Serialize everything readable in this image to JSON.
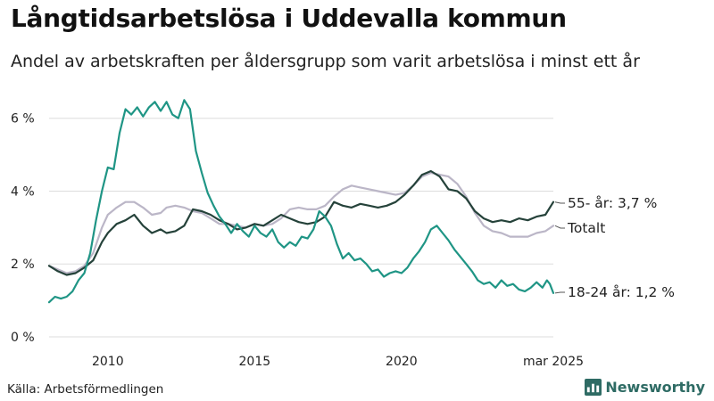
{
  "title": "Långtidsarbetslösa i Uddevalla kommun",
  "subtitle": "Andel av arbetskraften per åldersgrupp som varit arbetslösa i minst ett år",
  "source": "Källa: Arbetsförmedlingen",
  "brand": "Newsworthy",
  "colors": {
    "youth": "#1f9585",
    "older": "#25423a",
    "total": "#bbb6c7",
    "grid": "#dddddd",
    "text": "#222222"
  },
  "chart_data": {
    "type": "line",
    "x_unit": "year",
    "xlim": [
      2008.0,
      2025.17
    ],
    "ylim": [
      0,
      6.8
    ],
    "y_ticks": [
      {
        "value": 0,
        "label": "0 %"
      },
      {
        "value": 2,
        "label": "2 %"
      },
      {
        "value": 4,
        "label": "4 %"
      },
      {
        "value": 6,
        "label": "6 %"
      }
    ],
    "x_ticks": [
      {
        "value": 2010,
        "label": "2010"
      },
      {
        "value": 2015,
        "label": "2015"
      },
      {
        "value": 2020,
        "label": "2020"
      },
      {
        "value": 2025.17,
        "label": "mar 2025"
      }
    ],
    "grid": "horizontal",
    "series": [
      {
        "name": "Totalt",
        "color_key": "total",
        "end_label": "Totalt",
        "points": [
          [
            2008.0,
            1.95
          ],
          [
            2008.3,
            1.85
          ],
          [
            2008.6,
            1.75
          ],
          [
            2008.9,
            1.8
          ],
          [
            2009.2,
            1.95
          ],
          [
            2009.5,
            2.3
          ],
          [
            2009.8,
            3.0
          ],
          [
            2010.0,
            3.35
          ],
          [
            2010.3,
            3.55
          ],
          [
            2010.6,
            3.7
          ],
          [
            2010.9,
            3.7
          ],
          [
            2011.2,
            3.55
          ],
          [
            2011.5,
            3.35
          ],
          [
            2011.8,
            3.4
          ],
          [
            2012.0,
            3.55
          ],
          [
            2012.3,
            3.6
          ],
          [
            2012.6,
            3.55
          ],
          [
            2012.9,
            3.45
          ],
          [
            2013.2,
            3.4
          ],
          [
            2013.5,
            3.25
          ],
          [
            2013.8,
            3.1
          ],
          [
            2014.1,
            3.1
          ],
          [
            2014.4,
            3.05
          ],
          [
            2014.7,
            3.0
          ],
          [
            2015.0,
            3.1
          ],
          [
            2015.3,
            3.05
          ],
          [
            2015.6,
            3.1
          ],
          [
            2015.9,
            3.25
          ],
          [
            2016.2,
            3.5
          ],
          [
            2016.5,
            3.55
          ],
          [
            2016.8,
            3.5
          ],
          [
            2017.1,
            3.5
          ],
          [
            2017.4,
            3.6
          ],
          [
            2017.7,
            3.85
          ],
          [
            2018.0,
            4.05
          ],
          [
            2018.3,
            4.15
          ],
          [
            2018.6,
            4.1
          ],
          [
            2018.9,
            4.05
          ],
          [
            2019.2,
            4.0
          ],
          [
            2019.5,
            3.95
          ],
          [
            2019.8,
            3.9
          ],
          [
            2020.1,
            3.95
          ],
          [
            2020.4,
            4.15
          ],
          [
            2020.7,
            4.4
          ],
          [
            2021.0,
            4.5
          ],
          [
            2021.3,
            4.45
          ],
          [
            2021.6,
            4.4
          ],
          [
            2021.9,
            4.2
          ],
          [
            2022.2,
            3.85
          ],
          [
            2022.5,
            3.4
          ],
          [
            2022.8,
            3.05
          ],
          [
            2023.1,
            2.9
          ],
          [
            2023.4,
            2.85
          ],
          [
            2023.7,
            2.75
          ],
          [
            2024.0,
            2.75
          ],
          [
            2024.3,
            2.75
          ],
          [
            2024.6,
            2.85
          ],
          [
            2024.9,
            2.9
          ],
          [
            2025.17,
            3.05
          ]
        ]
      },
      {
        "name": "55- år",
        "color_key": "older",
        "end_label": "55- år: 3,7 %",
        "points": [
          [
            2008.0,
            1.95
          ],
          [
            2008.3,
            1.8
          ],
          [
            2008.6,
            1.7
          ],
          [
            2008.9,
            1.75
          ],
          [
            2009.2,
            1.9
          ],
          [
            2009.5,
            2.1
          ],
          [
            2009.8,
            2.6
          ],
          [
            2010.0,
            2.85
          ],
          [
            2010.3,
            3.1
          ],
          [
            2010.6,
            3.2
          ],
          [
            2010.9,
            3.35
          ],
          [
            2011.2,
            3.05
          ],
          [
            2011.5,
            2.85
          ],
          [
            2011.8,
            2.95
          ],
          [
            2012.0,
            2.85
          ],
          [
            2012.3,
            2.9
          ],
          [
            2012.6,
            3.05
          ],
          [
            2012.9,
            3.5
          ],
          [
            2013.2,
            3.45
          ],
          [
            2013.5,
            3.35
          ],
          [
            2013.8,
            3.2
          ],
          [
            2014.1,
            3.1
          ],
          [
            2014.4,
            2.95
          ],
          [
            2014.7,
            3.0
          ],
          [
            2015.0,
            3.1
          ],
          [
            2015.3,
            3.05
          ],
          [
            2015.6,
            3.2
          ],
          [
            2015.9,
            3.35
          ],
          [
            2016.2,
            3.25
          ],
          [
            2016.5,
            3.15
          ],
          [
            2016.8,
            3.1
          ],
          [
            2017.1,
            3.15
          ],
          [
            2017.4,
            3.3
          ],
          [
            2017.7,
            3.7
          ],
          [
            2018.0,
            3.6
          ],
          [
            2018.3,
            3.55
          ],
          [
            2018.6,
            3.65
          ],
          [
            2018.9,
            3.6
          ],
          [
            2019.2,
            3.55
          ],
          [
            2019.5,
            3.6
          ],
          [
            2019.8,
            3.7
          ],
          [
            2020.1,
            3.9
          ],
          [
            2020.4,
            4.15
          ],
          [
            2020.7,
            4.45
          ],
          [
            2021.0,
            4.55
          ],
          [
            2021.3,
            4.4
          ],
          [
            2021.6,
            4.05
          ],
          [
            2021.9,
            4.0
          ],
          [
            2022.2,
            3.8
          ],
          [
            2022.5,
            3.45
          ],
          [
            2022.8,
            3.25
          ],
          [
            2023.1,
            3.15
          ],
          [
            2023.4,
            3.2
          ],
          [
            2023.7,
            3.15
          ],
          [
            2024.0,
            3.25
          ],
          [
            2024.3,
            3.2
          ],
          [
            2024.6,
            3.3
          ],
          [
            2024.9,
            3.35
          ],
          [
            2025.17,
            3.7
          ]
        ]
      },
      {
        "name": "18-24 år",
        "color_key": "youth",
        "end_label": "18-24 år: 1,2 %",
        "points": [
          [
            2008.0,
            0.95
          ],
          [
            2008.2,
            1.1
          ],
          [
            2008.4,
            1.05
          ],
          [
            2008.6,
            1.1
          ],
          [
            2008.8,
            1.25
          ],
          [
            2009.0,
            1.55
          ],
          [
            2009.2,
            1.75
          ],
          [
            2009.4,
            2.3
          ],
          [
            2009.6,
            3.2
          ],
          [
            2009.8,
            4.0
          ],
          [
            2010.0,
            4.65
          ],
          [
            2010.2,
            4.6
          ],
          [
            2010.4,
            5.6
          ],
          [
            2010.6,
            6.25
          ],
          [
            2010.8,
            6.1
          ],
          [
            2011.0,
            6.3
          ],
          [
            2011.2,
            6.05
          ],
          [
            2011.4,
            6.3
          ],
          [
            2011.6,
            6.45
          ],
          [
            2011.8,
            6.2
          ],
          [
            2012.0,
            6.45
          ],
          [
            2012.2,
            6.1
          ],
          [
            2012.4,
            6.0
          ],
          [
            2012.6,
            6.5
          ],
          [
            2012.8,
            6.25
          ],
          [
            2013.0,
            5.1
          ],
          [
            2013.2,
            4.5
          ],
          [
            2013.4,
            3.95
          ],
          [
            2013.6,
            3.6
          ],
          [
            2013.8,
            3.3
          ],
          [
            2014.0,
            3.1
          ],
          [
            2014.2,
            2.85
          ],
          [
            2014.4,
            3.1
          ],
          [
            2014.6,
            2.9
          ],
          [
            2014.8,
            2.75
          ],
          [
            2015.0,
            3.05
          ],
          [
            2015.2,
            2.85
          ],
          [
            2015.4,
            2.75
          ],
          [
            2015.6,
            2.95
          ],
          [
            2015.8,
            2.6
          ],
          [
            2016.0,
            2.45
          ],
          [
            2016.2,
            2.6
          ],
          [
            2016.4,
            2.5
          ],
          [
            2016.6,
            2.75
          ],
          [
            2016.8,
            2.7
          ],
          [
            2017.0,
            2.95
          ],
          [
            2017.2,
            3.45
          ],
          [
            2017.4,
            3.3
          ],
          [
            2017.6,
            3.05
          ],
          [
            2017.8,
            2.55
          ],
          [
            2018.0,
            2.15
          ],
          [
            2018.2,
            2.3
          ],
          [
            2018.4,
            2.1
          ],
          [
            2018.6,
            2.15
          ],
          [
            2018.8,
            2.0
          ],
          [
            2019.0,
            1.8
          ],
          [
            2019.2,
            1.85
          ],
          [
            2019.4,
            1.65
          ],
          [
            2019.6,
            1.75
          ],
          [
            2019.8,
            1.8
          ],
          [
            2020.0,
            1.75
          ],
          [
            2020.2,
            1.9
          ],
          [
            2020.4,
            2.15
          ],
          [
            2020.6,
            2.35
          ],
          [
            2020.8,
            2.6
          ],
          [
            2021.0,
            2.95
          ],
          [
            2021.2,
            3.05
          ],
          [
            2021.4,
            2.85
          ],
          [
            2021.6,
            2.65
          ],
          [
            2021.8,
            2.4
          ],
          [
            2022.0,
            2.2
          ],
          [
            2022.2,
            2.0
          ],
          [
            2022.4,
            1.8
          ],
          [
            2022.6,
            1.55
          ],
          [
            2022.8,
            1.45
          ],
          [
            2023.0,
            1.5
          ],
          [
            2023.2,
            1.35
          ],
          [
            2023.4,
            1.55
          ],
          [
            2023.6,
            1.4
          ],
          [
            2023.8,
            1.45
          ],
          [
            2024.0,
            1.3
          ],
          [
            2024.2,
            1.25
          ],
          [
            2024.4,
            1.35
          ],
          [
            2024.6,
            1.5
          ],
          [
            2024.8,
            1.35
          ],
          [
            2024.95,
            1.55
          ],
          [
            2025.05,
            1.45
          ],
          [
            2025.17,
            1.2
          ]
        ]
      }
    ]
  }
}
